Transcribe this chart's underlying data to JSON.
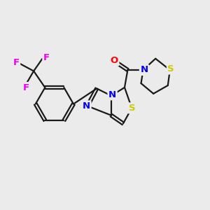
{
  "background_color": "#ebebeb",
  "bond_color": "#1a1a1a",
  "bond_width": 1.6,
  "figsize": [
    3.0,
    3.0
  ],
  "dpi": 100,
  "atom_colors": {
    "N": "#0000ee",
    "S": "#cccc00",
    "O": "#ff0000",
    "F": "#ee00ee"
  },
  "font_size": 9.5
}
